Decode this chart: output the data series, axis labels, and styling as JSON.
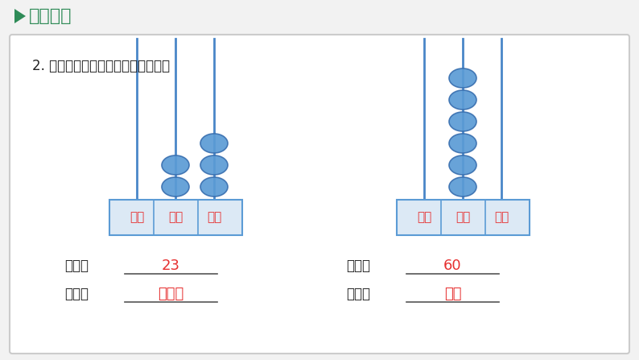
{
  "bg_color": "#f2f2f2",
  "card_bg": "#ffffff",
  "card_border": "#cccccc",
  "title_bar_color": "#f2f2f2",
  "title_text": "►课堂导入",
  "title_arrow_color": "#2e8b57",
  "title_text_color": "#2e8b57",
  "subtitle": "2. 写出计数器表示的数，并读出来。",
  "subtitle_color": "#222222",
  "abacus_rod_color": "#4a86c8",
  "abacus_bead_color": "#5b9bd5",
  "abacus_bead_edge": "#3a70b0",
  "abacus_base_bg": "#dce9f5",
  "abacus_base_border": "#5b9bd5",
  "abacus_label_color": "#e63030",
  "label_positions": [
    "百位",
    "十位",
    "个位"
  ],
  "write1_label": "写作：",
  "write1_value": "23",
  "read1_label": "读作：",
  "read1_value": "二十三",
  "write2_label": "写作：",
  "write2_value": "60",
  "read2_label": "读作：",
  "read2_value": "六十",
  "answer_color": "#e63030",
  "text_color": "#222222",
  "line_color": "#555555"
}
